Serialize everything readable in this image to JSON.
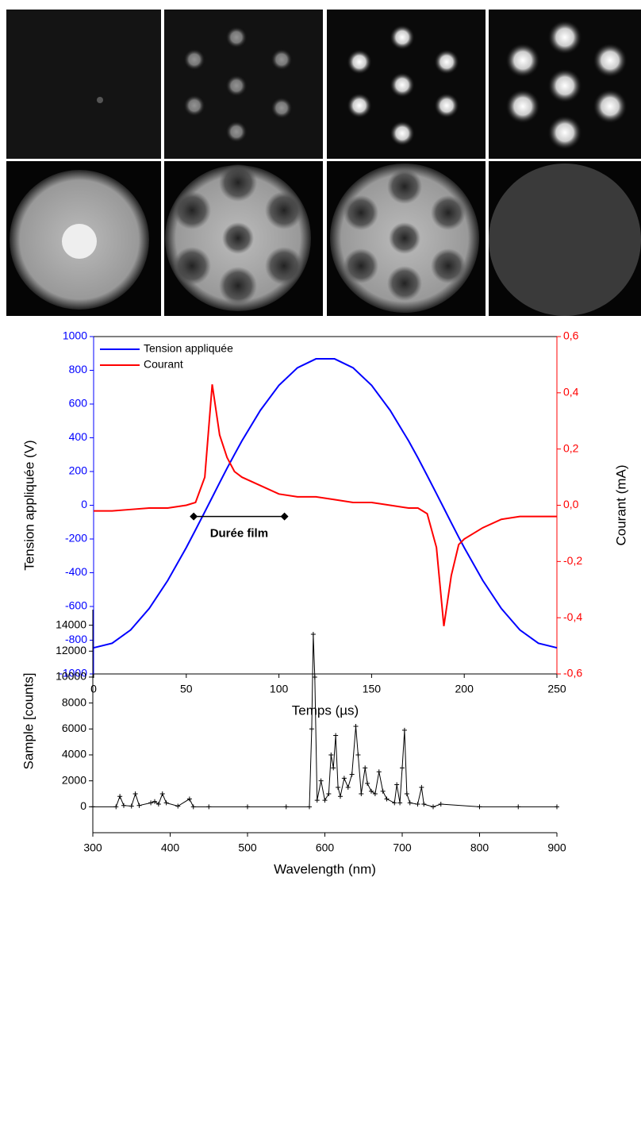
{
  "chart_data": [
    {
      "type": "line",
      "x_label": "Temps (µs)",
      "y_label": "Tension appliquée (V)",
      "y2_label": "Courant (mA)",
      "x": [
        0,
        10,
        20,
        30,
        40,
        50,
        55,
        60,
        64,
        68,
        72,
        76,
        80,
        90,
        100,
        110,
        120,
        130,
        140,
        150,
        160,
        170,
        175,
        180,
        185,
        189,
        193,
        197,
        200,
        210,
        220,
        230,
        240,
        250
      ],
      "series": [
        {
          "name": "Tension appliquée",
          "color": "#0000ff",
          "values": [
            -845,
            -818,
            -739,
            -612,
            -446,
            -251,
            -146,
            -39,
            47,
            134,
            219,
            301,
            381,
            563,
            711,
            815,
            868,
            868,
            815,
            711,
            563,
            381,
            281,
            176,
            69,
            -17,
            -104,
            -189,
            -251,
            -446,
            -612,
            -739,
            -818,
            -845
          ]
        },
        {
          "name": "Courant",
          "color": "#ff0000",
          "axis": "y2",
          "values": [
            -0.02,
            -0.02,
            -0.015,
            -0.01,
            -0.01,
            0.0,
            0.01,
            0.1,
            0.43,
            0.25,
            0.17,
            0.12,
            0.1,
            0.07,
            0.04,
            0.03,
            0.03,
            0.02,
            0.01,
            0.01,
            0.0,
            -0.01,
            -0.01,
            -0.03,
            -0.15,
            -0.43,
            -0.25,
            -0.14,
            -0.12,
            -0.08,
            -0.05,
            -0.04,
            -0.04,
            -0.04
          ]
        }
      ],
      "xlim": [
        0,
        250
      ],
      "xticks": [
        0,
        50,
        100,
        150,
        200,
        250
      ],
      "ylim": [
        -1000,
        1000
      ],
      "yticks": [
        -1000,
        -800,
        -600,
        -400,
        -200,
        0,
        200,
        400,
        600,
        800,
        1000
      ],
      "y2lim": [
        -0.6,
        0.6
      ],
      "y2ticks": [
        {
          "value": -0.6,
          "label": "-0,6"
        },
        {
          "value": -0.4,
          "label": "-0,4"
        },
        {
          "value": -0.2,
          "label": "-0,2"
        },
        {
          "value": 0,
          "label": "0,0"
        },
        {
          "value": 0.2,
          "label": "0,2"
        },
        {
          "value": 0.4,
          "label": "0,4"
        },
        {
          "value": 0.6,
          "label": "0,6"
        }
      ],
      "y_color": "#0000ff",
      "y2_color": "#ff0000",
      "legend": "upper left",
      "annotation": {
        "text": "Durée film",
        "start": 54,
        "end": 103,
        "level": -0.04
      }
    },
    {
      "type": "scatter",
      "x_label": "Wavelength (nm)",
      "y_label": "Sample [counts]",
      "x": [
        300,
        330,
        335,
        340,
        350,
        355,
        360,
        375,
        380,
        385,
        390,
        395,
        410,
        425,
        430,
        450,
        500,
        550,
        580,
        583,
        585,
        587,
        590,
        595,
        600,
        605,
        608,
        611,
        614,
        617,
        620,
        625,
        630,
        635,
        640,
        643,
        647,
        652,
        655,
        660,
        665,
        670,
        675,
        680,
        690,
        693,
        697,
        700,
        703,
        706,
        710,
        720,
        725,
        728,
        740,
        750,
        800,
        850,
        900
      ],
      "series": [
        {
          "name": null,
          "color": "#000000",
          "values": [
            0,
            0,
            800,
            100,
            50,
            1000,
            100,
            300,
            400,
            200,
            1000,
            300,
            50,
            600,
            0,
            0,
            0,
            0,
            0,
            6000,
            13300,
            10000,
            500,
            2000,
            500,
            1000,
            4000,
            3000,
            5500,
            1500,
            800,
            2200,
            1500,
            2500,
            6200,
            4000,
            1000,
            3000,
            1800,
            1200,
            1000,
            2700,
            1200,
            600,
            300,
            1700,
            300,
            3000,
            5900,
            1000,
            300,
            200,
            1500,
            200,
            0,
            200,
            0,
            0,
            0
          ]
        }
      ],
      "xlim": [
        300,
        900
      ],
      "xticks": [
        300,
        400,
        500,
        600,
        700,
        800,
        900
      ],
      "ylim": [
        -2000,
        15200
      ],
      "yticks": [
        0,
        2000,
        4000,
        6000,
        8000,
        10000,
        12000,
        14000
      ]
    }
  ]
}
